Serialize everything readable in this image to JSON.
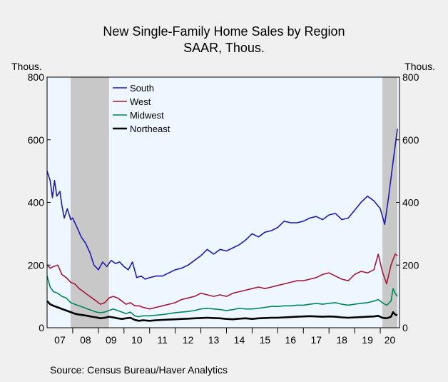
{
  "chart_data": {
    "type": "line",
    "title": "New Single-Family Home Sales by Region",
    "subtitle": "SAAR, Thous.",
    "ylabel_left": "Thous.",
    "ylabel_right": "Thous.",
    "ylim": [
      0,
      800
    ],
    "yticks": [
      0,
      200,
      400,
      600,
      800
    ],
    "xlim": [
      2007.0,
      2020.75
    ],
    "xtick_labels": [
      "07",
      "08",
      "09",
      "10",
      "11",
      "12",
      "13",
      "14",
      "15",
      "16",
      "17",
      "18",
      "19",
      "20"
    ],
    "recessions": [
      [
        2007.9167,
        2009.4167
      ],
      [
        2020.0833,
        2020.6667
      ]
    ],
    "legend": "top-left",
    "grid": false,
    "source": "Source:  Census Bureau/Haver Analytics",
    "colors": {
      "plot_bg": "#eef6ff",
      "recession": "#c8c8c8",
      "frame": "#000000"
    },
    "series": [
      {
        "name": "South",
        "color": "#1c1cb0",
        "points": [
          [
            2007.0,
            500
          ],
          [
            2007.12,
            470
          ],
          [
            2007.21,
            415
          ],
          [
            2007.29,
            470
          ],
          [
            2007.38,
            420
          ],
          [
            2007.5,
            435
          ],
          [
            2007.58,
            390
          ],
          [
            2007.67,
            350
          ],
          [
            2007.79,
            380
          ],
          [
            2007.92,
            345
          ],
          [
            2008.0,
            350
          ],
          [
            2008.17,
            320
          ],
          [
            2008.33,
            290
          ],
          [
            2008.5,
            270
          ],
          [
            2008.67,
            240
          ],
          [
            2008.83,
            200
          ],
          [
            2009.0,
            185
          ],
          [
            2009.17,
            210
          ],
          [
            2009.33,
            195
          ],
          [
            2009.5,
            215
          ],
          [
            2009.67,
            205
          ],
          [
            2009.83,
            210
          ],
          [
            2010.0,
            195
          ],
          [
            2010.17,
            185
          ],
          [
            2010.33,
            210
          ],
          [
            2010.5,
            160
          ],
          [
            2010.67,
            165
          ],
          [
            2010.83,
            155
          ],
          [
            2011.0,
            160
          ],
          [
            2011.25,
            165
          ],
          [
            2011.5,
            165
          ],
          [
            2011.75,
            175
          ],
          [
            2012.0,
            185
          ],
          [
            2012.25,
            190
          ],
          [
            2012.5,
            200
          ],
          [
            2012.75,
            215
          ],
          [
            2013.0,
            230
          ],
          [
            2013.25,
            250
          ],
          [
            2013.5,
            235
          ],
          [
            2013.75,
            250
          ],
          [
            2014.0,
            245
          ],
          [
            2014.25,
            255
          ],
          [
            2014.5,
            265
          ],
          [
            2014.75,
            280
          ],
          [
            2015.0,
            300
          ],
          [
            2015.25,
            290
          ],
          [
            2015.5,
            305
          ],
          [
            2015.75,
            310
          ],
          [
            2016.0,
            320
          ],
          [
            2016.25,
            340
          ],
          [
            2016.5,
            335
          ],
          [
            2016.75,
            335
          ],
          [
            2017.0,
            340
          ],
          [
            2017.25,
            350
          ],
          [
            2017.5,
            355
          ],
          [
            2017.75,
            345
          ],
          [
            2018.0,
            360
          ],
          [
            2018.25,
            365
          ],
          [
            2018.5,
            345
          ],
          [
            2018.75,
            350
          ],
          [
            2019.0,
            375
          ],
          [
            2019.25,
            400
          ],
          [
            2019.5,
            420
          ],
          [
            2019.75,
            405
          ],
          [
            2020.0,
            380
          ],
          [
            2020.17,
            330
          ],
          [
            2020.33,
            420
          ],
          [
            2020.5,
            530
          ],
          [
            2020.67,
            635
          ]
        ]
      },
      {
        "name": "West",
        "color": "#a3183a",
        "points": [
          [
            2007.0,
            200
          ],
          [
            2007.12,
            190
          ],
          [
            2007.25,
            195
          ],
          [
            2007.42,
            200
          ],
          [
            2007.58,
            170
          ],
          [
            2007.75,
            160
          ],
          [
            2007.92,
            145
          ],
          [
            2008.08,
            140
          ],
          [
            2008.25,
            125
          ],
          [
            2008.42,
            115
          ],
          [
            2008.58,
            105
          ],
          [
            2008.75,
            95
          ],
          [
            2008.92,
            85
          ],
          [
            2009.08,
            75
          ],
          [
            2009.25,
            80
          ],
          [
            2009.42,
            95
          ],
          [
            2009.58,
            100
          ],
          [
            2009.75,
            95
          ],
          [
            2009.92,
            85
          ],
          [
            2010.08,
            75
          ],
          [
            2010.25,
            80
          ],
          [
            2010.42,
            70
          ],
          [
            2010.58,
            70
          ],
          [
            2010.75,
            65
          ],
          [
            2011.0,
            60
          ],
          [
            2011.25,
            65
          ],
          [
            2011.5,
            70
          ],
          [
            2011.75,
            75
          ],
          [
            2012.0,
            80
          ],
          [
            2012.25,
            90
          ],
          [
            2012.5,
            95
          ],
          [
            2012.75,
            100
          ],
          [
            2013.0,
            110
          ],
          [
            2013.25,
            105
          ],
          [
            2013.5,
            100
          ],
          [
            2013.75,
            105
          ],
          [
            2014.0,
            100
          ],
          [
            2014.25,
            110
          ],
          [
            2014.5,
            115
          ],
          [
            2014.75,
            120
          ],
          [
            2015.0,
            125
          ],
          [
            2015.25,
            130
          ],
          [
            2015.5,
            125
          ],
          [
            2015.75,
            130
          ],
          [
            2016.0,
            135
          ],
          [
            2016.25,
            140
          ],
          [
            2016.5,
            145
          ],
          [
            2016.75,
            150
          ],
          [
            2017.0,
            150
          ],
          [
            2017.25,
            155
          ],
          [
            2017.5,
            160
          ],
          [
            2017.75,
            170
          ],
          [
            2018.0,
            175
          ],
          [
            2018.25,
            165
          ],
          [
            2018.5,
            155
          ],
          [
            2018.75,
            150
          ],
          [
            2019.0,
            170
          ],
          [
            2019.25,
            180
          ],
          [
            2019.5,
            175
          ],
          [
            2019.75,
            185
          ],
          [
            2019.92,
            235
          ],
          [
            2020.08,
            180
          ],
          [
            2020.25,
            140
          ],
          [
            2020.42,
            200
          ],
          [
            2020.58,
            235
          ],
          [
            2020.67,
            230
          ]
        ]
      },
      {
        "name": "Midwest",
        "color": "#00865a",
        "points": [
          [
            2007.0,
            165
          ],
          [
            2007.12,
            130
          ],
          [
            2007.25,
            115
          ],
          [
            2007.42,
            110
          ],
          [
            2007.58,
            100
          ],
          [
            2007.75,
            95
          ],
          [
            2007.92,
            80
          ],
          [
            2008.08,
            75
          ],
          [
            2008.25,
            70
          ],
          [
            2008.42,
            65
          ],
          [
            2008.58,
            60
          ],
          [
            2008.75,
            55
          ],
          [
            2008.92,
            50
          ],
          [
            2009.08,
            48
          ],
          [
            2009.25,
            50
          ],
          [
            2009.42,
            55
          ],
          [
            2009.58,
            60
          ],
          [
            2009.75,
            55
          ],
          [
            2009.92,
            50
          ],
          [
            2010.08,
            45
          ],
          [
            2010.25,
            50
          ],
          [
            2010.42,
            38
          ],
          [
            2010.58,
            35
          ],
          [
            2010.75,
            38
          ],
          [
            2011.0,
            38
          ],
          [
            2011.25,
            40
          ],
          [
            2011.5,
            42
          ],
          [
            2011.75,
            45
          ],
          [
            2012.0,
            48
          ],
          [
            2012.25,
            50
          ],
          [
            2012.5,
            52
          ],
          [
            2012.75,
            55
          ],
          [
            2013.0,
            60
          ],
          [
            2013.25,
            62
          ],
          [
            2013.5,
            60
          ],
          [
            2013.75,
            58
          ],
          [
            2014.0,
            55
          ],
          [
            2014.25,
            58
          ],
          [
            2014.5,
            62
          ],
          [
            2014.75,
            60
          ],
          [
            2015.0,
            60
          ],
          [
            2015.25,
            62
          ],
          [
            2015.5,
            65
          ],
          [
            2015.75,
            68
          ],
          [
            2016.0,
            68
          ],
          [
            2016.25,
            70
          ],
          [
            2016.5,
            70
          ],
          [
            2016.75,
            72
          ],
          [
            2017.0,
            72
          ],
          [
            2017.25,
            75
          ],
          [
            2017.5,
            78
          ],
          [
            2017.75,
            75
          ],
          [
            2018.0,
            78
          ],
          [
            2018.25,
            80
          ],
          [
            2018.5,
            75
          ],
          [
            2018.75,
            72
          ],
          [
            2019.0,
            75
          ],
          [
            2019.25,
            78
          ],
          [
            2019.5,
            80
          ],
          [
            2019.75,
            85
          ],
          [
            2019.92,
            90
          ],
          [
            2020.08,
            80
          ],
          [
            2020.25,
            72
          ],
          [
            2020.42,
            85
          ],
          [
            2020.5,
            125
          ],
          [
            2020.58,
            110
          ],
          [
            2020.67,
            100
          ]
        ]
      },
      {
        "name": "Northeast",
        "color": "#000000",
        "points": [
          [
            2007.0,
            85
          ],
          [
            2007.12,
            75
          ],
          [
            2007.25,
            70
          ],
          [
            2007.42,
            65
          ],
          [
            2007.58,
            60
          ],
          [
            2007.75,
            55
          ],
          [
            2007.92,
            50
          ],
          [
            2008.08,
            45
          ],
          [
            2008.25,
            42
          ],
          [
            2008.42,
            40
          ],
          [
            2008.58,
            38
          ],
          [
            2008.75,
            35
          ],
          [
            2008.92,
            33
          ],
          [
            2009.08,
            30
          ],
          [
            2009.25,
            32
          ],
          [
            2009.42,
            35
          ],
          [
            2009.58,
            33
          ],
          [
            2009.75,
            30
          ],
          [
            2009.92,
            28
          ],
          [
            2010.08,
            30
          ],
          [
            2010.25,
            32
          ],
          [
            2010.42,
            25
          ],
          [
            2010.58,
            22
          ],
          [
            2010.75,
            24
          ],
          [
            2011.0,
            22
          ],
          [
            2011.25,
            24
          ],
          [
            2011.5,
            25
          ],
          [
            2011.75,
            26
          ],
          [
            2012.0,
            27
          ],
          [
            2012.25,
            28
          ],
          [
            2012.5,
            29
          ],
          [
            2012.75,
            30
          ],
          [
            2013.0,
            31
          ],
          [
            2013.25,
            32
          ],
          [
            2013.5,
            31
          ],
          [
            2013.75,
            30
          ],
          [
            2014.0,
            28
          ],
          [
            2014.25,
            27
          ],
          [
            2014.5,
            29
          ],
          [
            2014.75,
            30
          ],
          [
            2015.0,
            28
          ],
          [
            2015.25,
            30
          ],
          [
            2015.5,
            31
          ],
          [
            2015.75,
            32
          ],
          [
            2016.0,
            32
          ],
          [
            2016.25,
            33
          ],
          [
            2016.5,
            34
          ],
          [
            2016.75,
            35
          ],
          [
            2017.0,
            36
          ],
          [
            2017.25,
            37
          ],
          [
            2017.5,
            36
          ],
          [
            2017.75,
            35
          ],
          [
            2018.0,
            36
          ],
          [
            2018.25,
            35
          ],
          [
            2018.5,
            33
          ],
          [
            2018.75,
            32
          ],
          [
            2019.0,
            33
          ],
          [
            2019.25,
            34
          ],
          [
            2019.5,
            35
          ],
          [
            2019.75,
            36
          ],
          [
            2019.92,
            38
          ],
          [
            2020.08,
            32
          ],
          [
            2020.25,
            30
          ],
          [
            2020.42,
            35
          ],
          [
            2020.5,
            50
          ],
          [
            2020.58,
            42
          ],
          [
            2020.67,
            40
          ]
        ]
      }
    ]
  }
}
